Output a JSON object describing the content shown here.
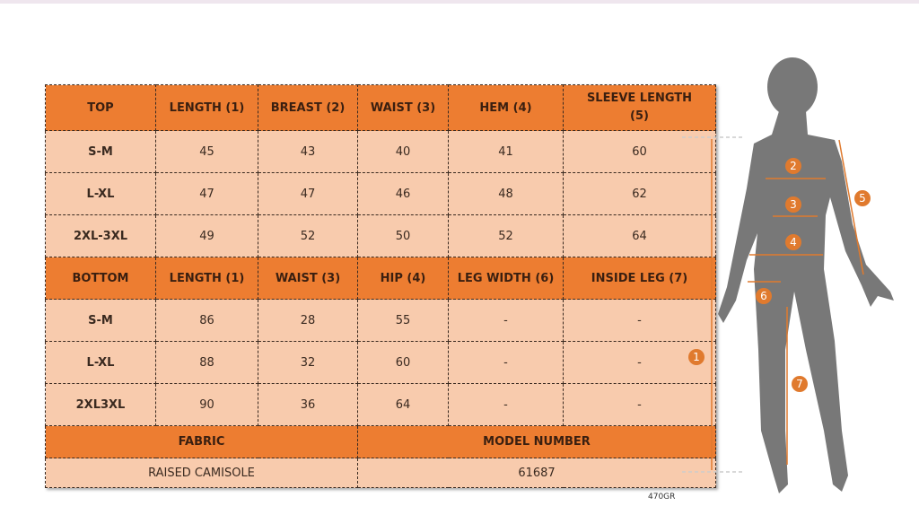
{
  "top_table": {
    "headers": [
      "TOP",
      "LENGTH (1)",
      "BREAST (2)",
      "WAIST (3)",
      "HEM (4)",
      "SLEEVE LENGTH (5)"
    ],
    "rows": [
      [
        "S-M",
        "45",
        "43",
        "40",
        "41",
        "60"
      ],
      [
        "L-XL",
        "47",
        "47",
        "46",
        "48",
        "62"
      ],
      [
        "2XL-3XL",
        "49",
        "52",
        "50",
        "52",
        "64"
      ]
    ]
  },
  "bottom_table": {
    "headers": [
      "BOTTOM",
      "LENGTH (1)",
      "WAIST (3)",
      "HIP (4)",
      "LEG WIDTH (6)",
      "INSIDE LEG (7)"
    ],
    "rows": [
      [
        "S-M",
        "86",
        "28",
        "55",
        "-",
        "-"
      ],
      [
        "L-XL",
        "88",
        "32",
        "60",
        "-",
        "-"
      ],
      [
        "2XL3XL",
        "90",
        "36",
        "64",
        "-",
        "-"
      ]
    ]
  },
  "info": {
    "fabric_label": "FABRIC",
    "model_label": "MODEL NUMBER",
    "fabric_value": "RAISED CAMISOLE",
    "model_value": "61687"
  },
  "code": "470GR",
  "figure": {
    "markers": [
      "1",
      "2",
      "3",
      "4",
      "5",
      "6",
      "7"
    ],
    "accent_color": "#e07a2e",
    "silhouette_color": "#787878"
  }
}
